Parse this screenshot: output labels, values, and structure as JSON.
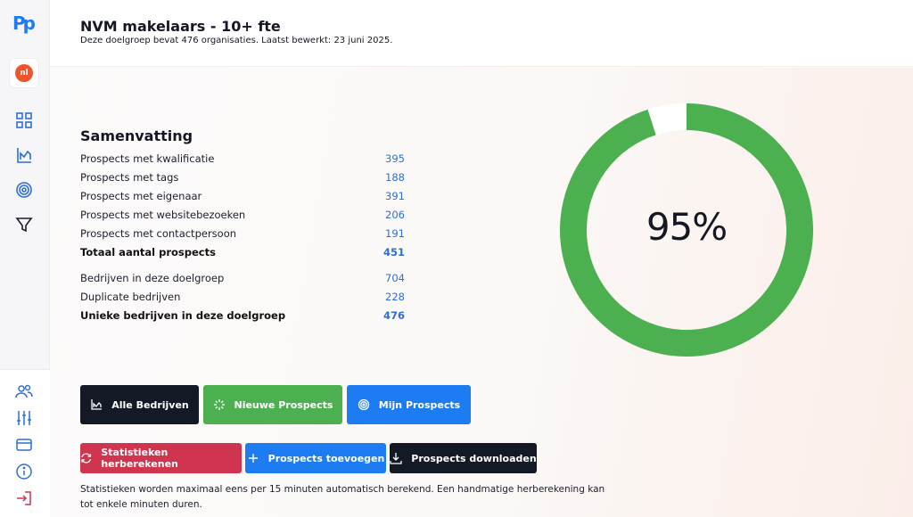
{
  "app": {
    "logo_text": "Pp"
  },
  "sidebar": {
    "language_badge": "nl",
    "top_icons": [
      "grid-icon",
      "chart-icon",
      "target-icon",
      "filter-icon"
    ],
    "bottom_icons": [
      "users-icon",
      "sliders-icon",
      "card-icon",
      "info-icon",
      "logout-icon"
    ]
  },
  "header": {
    "title": "NVM makelaars - 10+ fte",
    "subtitle": "Deze doelgroep bevat 476 organisaties. Laatst bewerkt: 23 juni 2025."
  },
  "summary": {
    "title": "Samenvatting",
    "rows": [
      {
        "label": "Prospects met kwalificatie",
        "value": "395"
      },
      {
        "label": "Prospects met tags",
        "value": "188"
      },
      {
        "label": "Prospects met eigenaar",
        "value": "391"
      },
      {
        "label": "Prospects met websitebezoeken",
        "value": "206"
      },
      {
        "label": "Prospects met contactpersoon",
        "value": "191"
      },
      {
        "label": "Totaal aantal prospects",
        "value": "451"
      },
      {
        "label": "Bedrijven in deze doelgroep",
        "value": "704"
      },
      {
        "label": "Duplicate bedrijven",
        "value": "228"
      },
      {
        "label": "Unieke bedrijven in deze doelgroep",
        "value": "476"
      }
    ]
  },
  "progress": {
    "label": "95%",
    "fraction": 0.95,
    "color": "#4caf50"
  },
  "buttons": {
    "alle_bedrijven": "Alle Bedrijven",
    "nieuwe_prospects": "Nieuwe Prospects",
    "mijn_prospects": "Mijn Prospects",
    "herberekenen": "Statistieken herberekenen",
    "toevoegen": "Prospects toevoegen",
    "downloaden": "Prospects downloaden"
  },
  "note": "Statistieken worden maximaal eens per 15 minuten automatisch berekend. Een handmatige herberekening kan tot enkele minuten duren.",
  "colors": {
    "accent_blue": "#1e7cf2",
    "dark": "#131a25",
    "green": "#4caf50",
    "red": "#d0354f"
  }
}
